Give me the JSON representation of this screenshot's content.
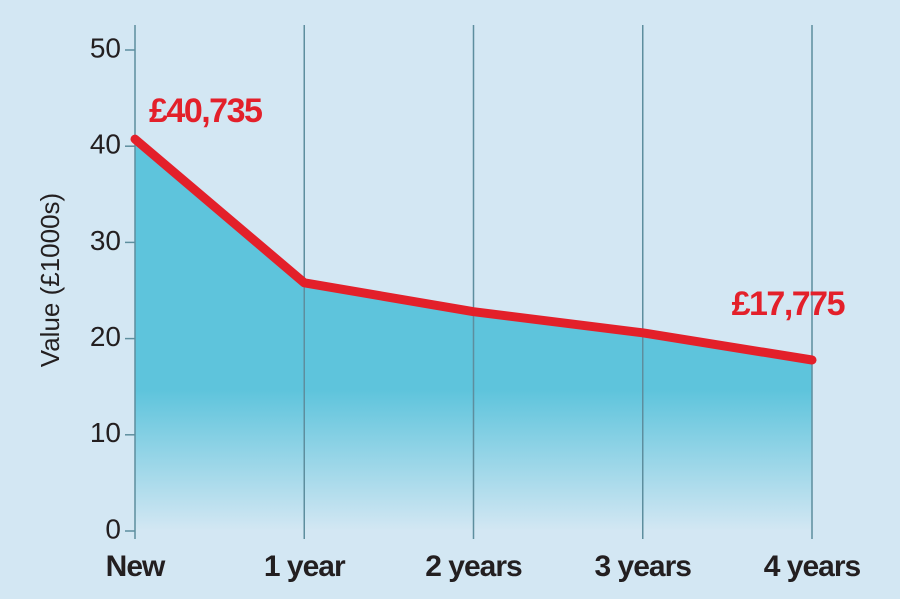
{
  "chart_data": {
    "type": "area",
    "y_label": "Value (£1000s)",
    "categories": [
      "New",
      "1 year",
      "2 years",
      "3 years",
      "4 years"
    ],
    "values": [
      40.735,
      25.8,
      22.8,
      20.6,
      17.775
    ],
    "value_labels": [
      "£40,735",
      null,
      null,
      null,
      "£17,775"
    ],
    "color": "#e3202a",
    "fill_color": "#5ec4dc",
    "ylim": [
      0,
      50
    ],
    "yticks": [
      0,
      10,
      20,
      30,
      40,
      50
    ],
    "grid": "x"
  }
}
